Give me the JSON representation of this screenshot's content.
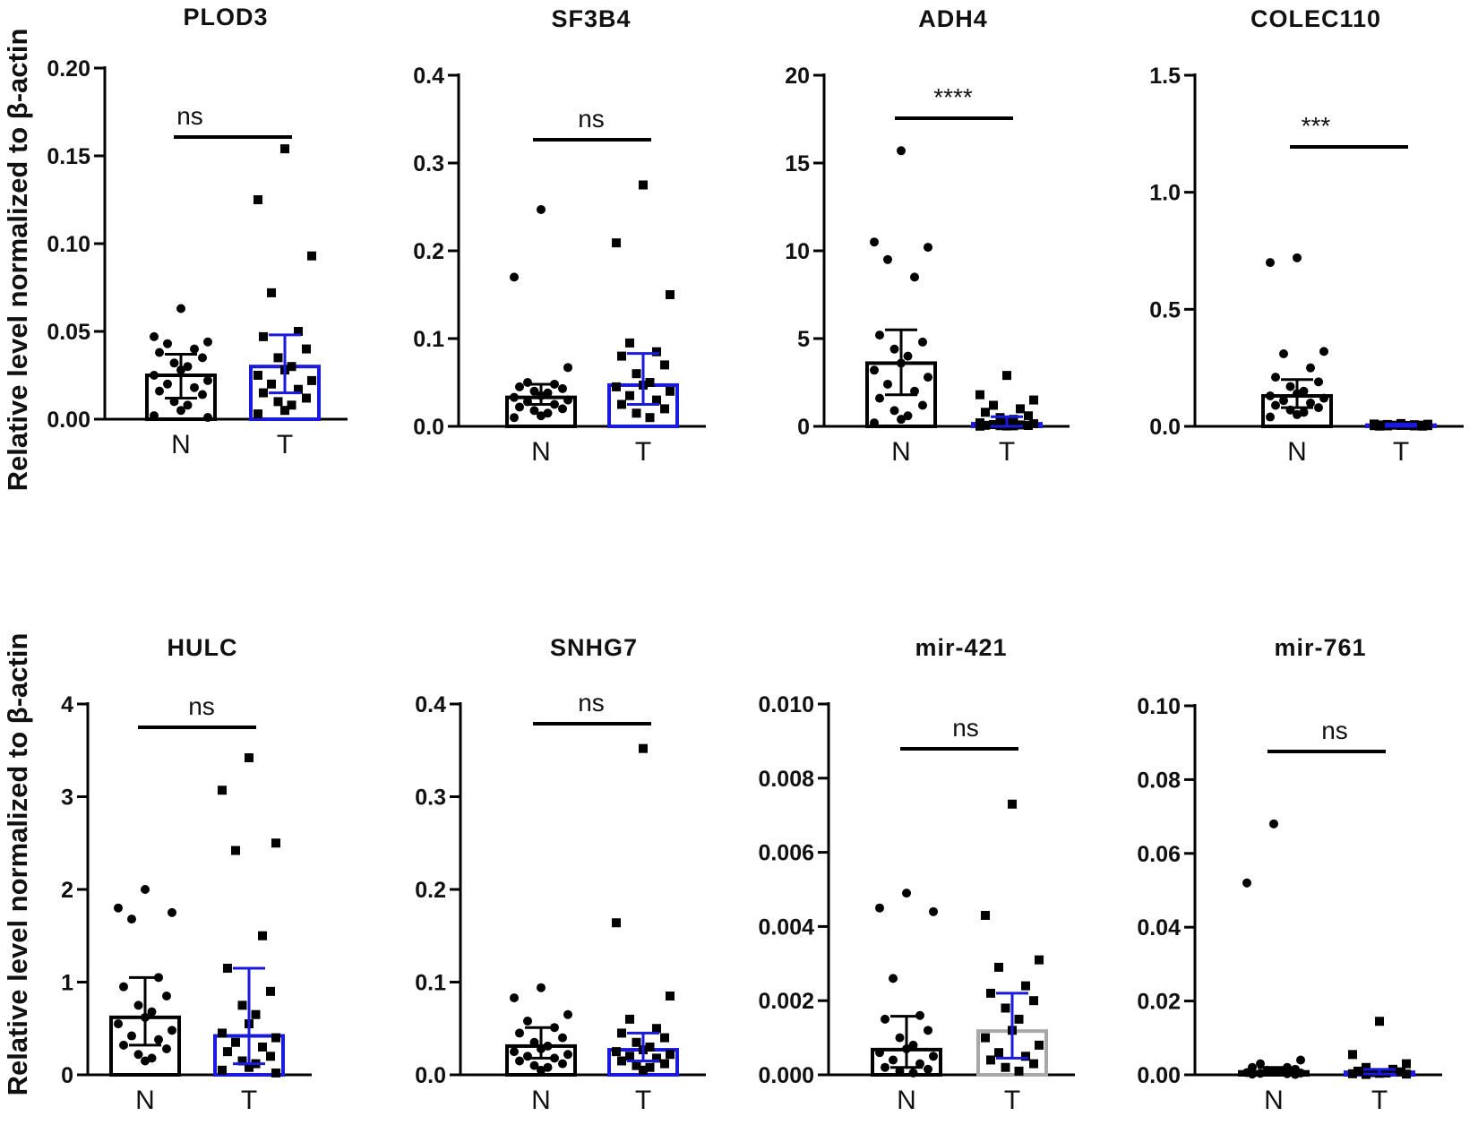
{
  "y_axis_label": "Relative level normalized to β-actin",
  "colors": {
    "normal": "#000000",
    "tumor_blue": "#1a1adc",
    "tumor_gray": "#a8a8a8"
  },
  "chart_data": [
    {
      "type": "bar",
      "title": "PLOD3",
      "categories": [
        "N",
        "T"
      ],
      "ylim": [
        0,
        0.2
      ],
      "ticks": [
        0,
        0.05,
        0.1,
        0.15,
        0.2
      ],
      "tick_labels": [
        "0.00",
        "0.05",
        "0.10",
        "0.15",
        "0.20"
      ],
      "significance": "ns",
      "series": [
        {
          "name": "N",
          "mean": 0.025,
          "error": [
            0.012,
            0.037
          ],
          "marker": "circle",
          "color": "#000000",
          "points": [
            0.063,
            0.047,
            0.044,
            0.043,
            0.04,
            0.038,
            0.035,
            0.032,
            0.03,
            0.028,
            0.025,
            0.022,
            0.02,
            0.018,
            0.016,
            0.014,
            0.01,
            0.008,
            0.005,
            0.002,
            0.001
          ]
        },
        {
          "name": "T",
          "mean": 0.03,
          "error": [
            0.015,
            0.048
          ],
          "marker": "square",
          "color": "#1a1adc",
          "points": [
            0.154,
            0.125,
            0.093,
            0.072,
            0.05,
            0.047,
            0.04,
            0.035,
            0.03,
            0.028,
            0.025,
            0.022,
            0.02,
            0.017,
            0.015,
            0.012,
            0.01,
            0.008,
            0.005,
            0.003
          ]
        }
      ]
    },
    {
      "type": "bar",
      "title": "SF3B4",
      "categories": [
        "N",
        "T"
      ],
      "ylim": [
        0,
        0.4
      ],
      "ticks": [
        0,
        0.1,
        0.2,
        0.3,
        0.4
      ],
      "tick_labels": [
        "0.0",
        "0.1",
        "0.2",
        "0.3",
        "0.4"
      ],
      "significance": "ns",
      "series": [
        {
          "name": "N",
          "mean": 0.033,
          "error": [
            0.025,
            0.048
          ],
          "marker": "circle",
          "color": "#000000",
          "points": [
            0.247,
            0.17,
            0.067,
            0.05,
            0.048,
            0.045,
            0.043,
            0.04,
            0.038,
            0.035,
            0.033,
            0.03,
            0.028,
            0.025,
            0.022,
            0.02,
            0.018,
            0.015,
            0.012,
            0.01
          ]
        },
        {
          "name": "T",
          "mean": 0.047,
          "error": [
            0.025,
            0.083
          ],
          "marker": "square",
          "color": "#1a1adc",
          "points": [
            0.275,
            0.209,
            0.15,
            0.095,
            0.085,
            0.08,
            0.07,
            0.06,
            0.05,
            0.047,
            0.045,
            0.04,
            0.035,
            0.03,
            0.025,
            0.02,
            0.015,
            0.01
          ]
        }
      ]
    },
    {
      "type": "bar",
      "title": "ADH4",
      "categories": [
        "N",
        "T"
      ],
      "ylim": [
        0,
        20
      ],
      "ticks": [
        0,
        5,
        10,
        15,
        20
      ],
      "tick_labels": [
        "0",
        "5",
        "10",
        "15",
        "20"
      ],
      "significance": "****",
      "series": [
        {
          "name": "N",
          "mean": 3.6,
          "error": [
            1.8,
            5.5
          ],
          "marker": "circle",
          "color": "#000000",
          "points": [
            15.7,
            10.5,
            10.2,
            9.5,
            8.5,
            5.2,
            4.8,
            4.4,
            4.0,
            3.6,
            3.2,
            2.8,
            2.4,
            2.0,
            1.6,
            1.2,
            0.9,
            0.6,
            0.4,
            0.2
          ]
        },
        {
          "name": "T",
          "mean": 0.15,
          "error": [
            0.0,
            0.55
          ],
          "marker": "square",
          "color": "#1a1adc",
          "points": [
            2.9,
            1.8,
            1.5,
            1.2,
            1.0,
            0.8,
            0.6,
            0.5,
            0.4,
            0.3,
            0.2,
            0.15,
            0.1,
            0.08,
            0.06,
            0.05,
            0.04,
            0.03,
            0.02,
            0.01
          ]
        }
      ]
    },
    {
      "type": "bar",
      "title": "COLEC110",
      "categories": [
        "N",
        "T"
      ],
      "ylim": [
        0,
        1.5
      ],
      "ticks": [
        0,
        0.5,
        1.0,
        1.5
      ],
      "tick_labels": [
        "0.0",
        "0.5",
        "1.0",
        "1.5"
      ],
      "significance": "***",
      "series": [
        {
          "name": "N",
          "mean": 0.13,
          "error": [
            0.08,
            0.2
          ],
          "marker": "circle",
          "color": "#000000",
          "points": [
            0.72,
            0.7,
            0.32,
            0.31,
            0.25,
            0.21,
            0.19,
            0.17,
            0.15,
            0.14,
            0.13,
            0.12,
            0.11,
            0.1,
            0.09,
            0.08,
            0.07,
            0.06,
            0.05,
            0.04
          ]
        },
        {
          "name": "T",
          "mean": 0.005,
          "error": [
            0.0,
            0.01
          ],
          "marker": "square",
          "color": "#1a1adc",
          "points": [
            0.012,
            0.01,
            0.009,
            0.008,
            0.007,
            0.006,
            0.005,
            0.005,
            0.004,
            0.004,
            0.003,
            0.003,
            0.002,
            0.002,
            0.001,
            0.001
          ]
        }
      ]
    },
    {
      "type": "bar",
      "title": "HULC",
      "categories": [
        "N",
        "T"
      ],
      "ylim": [
        0,
        4
      ],
      "ticks": [
        0,
        1,
        2,
        3,
        4
      ],
      "tick_labels": [
        "0",
        "1",
        "2",
        "3",
        "4"
      ],
      "significance": "ns",
      "series": [
        {
          "name": "N",
          "mean": 0.62,
          "error": [
            0.32,
            1.05
          ],
          "marker": "circle",
          "color": "#000000",
          "points": [
            2.0,
            1.8,
            1.75,
            1.68,
            1.05,
            0.95,
            0.85,
            0.75,
            0.68,
            0.62,
            0.55,
            0.48,
            0.42,
            0.38,
            0.32,
            0.28,
            0.22,
            0.18,
            0.15
          ]
        },
        {
          "name": "T",
          "mean": 0.42,
          "error": [
            0.12,
            1.15
          ],
          "marker": "square",
          "color": "#1a1adc",
          "points": [
            3.42,
            3.07,
            2.5,
            2.42,
            1.5,
            1.15,
            0.9,
            0.75,
            0.65,
            0.55,
            0.45,
            0.4,
            0.35,
            0.3,
            0.25,
            0.2,
            0.15,
            0.12,
            0.08,
            0.05,
            0.02
          ]
        }
      ]
    },
    {
      "type": "bar",
      "title": "SNHG7",
      "categories": [
        "N",
        "T"
      ],
      "ylim": [
        0,
        0.4
      ],
      "ticks": [
        0,
        0.1,
        0.2,
        0.3,
        0.4
      ],
      "tick_labels": [
        "0.0",
        "0.1",
        "0.2",
        "0.3",
        "0.4"
      ],
      "significance": "ns",
      "series": [
        {
          "name": "N",
          "mean": 0.031,
          "error": [
            0.018,
            0.051
          ],
          "marker": "circle",
          "color": "#000000",
          "points": [
            0.094,
            0.083,
            0.065,
            0.058,
            0.051,
            0.045,
            0.04,
            0.035,
            0.031,
            0.028,
            0.025,
            0.022,
            0.02,
            0.018,
            0.015,
            0.012,
            0.01,
            0.008,
            0.005
          ]
        },
        {
          "name": "T",
          "mean": 0.027,
          "error": [
            0.015,
            0.045
          ],
          "marker": "square",
          "color": "#1a1adc",
          "points": [
            0.352,
            0.164,
            0.085,
            0.06,
            0.05,
            0.045,
            0.04,
            0.035,
            0.03,
            0.027,
            0.025,
            0.022,
            0.02,
            0.018,
            0.015,
            0.012,
            0.01,
            0.008,
            0.005
          ]
        }
      ]
    },
    {
      "type": "bar",
      "title": "mir-421",
      "categories": [
        "N",
        "T"
      ],
      "ylim": [
        0,
        0.01
      ],
      "ticks": [
        0,
        0.002,
        0.004,
        0.006,
        0.008,
        0.01
      ],
      "tick_labels": [
        "0.000",
        "0.002",
        "0.004",
        "0.006",
        "0.008",
        "0.010"
      ],
      "significance": "ns",
      "series": [
        {
          "name": "N",
          "mean": 0.00068,
          "error": [
            0.0002,
            0.00158
          ],
          "marker": "circle",
          "color": "#000000",
          "points": [
            0.0049,
            0.0045,
            0.0044,
            0.0026,
            0.0016,
            0.0015,
            0.0012,
            0.001,
            0.0008,
            0.0007,
            0.0006,
            0.0005,
            0.0004,
            0.0003,
            0.0002,
            0.00015,
            0.0001,
            5e-05
          ]
        },
        {
          "name": "T",
          "mean": 0.00118,
          "error": [
            0.00045,
            0.0022
          ],
          "marker": "square",
          "color": "#a8a8a8",
          "error_color": "#1a1adc",
          "points": [
            0.0073,
            0.0043,
            0.0031,
            0.0029,
            0.0024,
            0.0022,
            0.002,
            0.0018,
            0.0015,
            0.0012,
            0.001,
            0.0008,
            0.0006,
            0.0005,
            0.0004,
            0.0003,
            0.0002,
            0.0001
          ]
        }
      ]
    },
    {
      "type": "bar",
      "title": "mir-761",
      "categories": [
        "N",
        "T"
      ],
      "ylim": [
        0,
        0.1
      ],
      "ticks": [
        0,
        0.02,
        0.04,
        0.06,
        0.08,
        0.1
      ],
      "tick_labels": [
        "0.00",
        "0.02",
        "0.04",
        "0.06",
        "0.08",
        "0.10"
      ],
      "significance": "ns",
      "series": [
        {
          "name": "N",
          "mean": 0.0008,
          "error": [
            0.0002,
            0.002
          ],
          "marker": "circle",
          "color": "#000000",
          "points": [
            0.068,
            0.052,
            0.004,
            0.003,
            0.002,
            0.002,
            0.0015,
            0.0012,
            0.001,
            0.0008,
            0.0006,
            0.0005,
            0.0004,
            0.0003,
            0.0002,
            0.0001
          ]
        },
        {
          "name": "T",
          "mean": 0.0007,
          "error": [
            0.0002,
            0.0015
          ],
          "marker": "square",
          "color": "#1a1adc",
          "points": [
            0.0145,
            0.0055,
            0.003,
            0.002,
            0.0015,
            0.001,
            0.0008,
            0.0006,
            0.0005,
            0.0004,
            0.0003,
            0.0002,
            0.0001
          ]
        }
      ]
    }
  ]
}
